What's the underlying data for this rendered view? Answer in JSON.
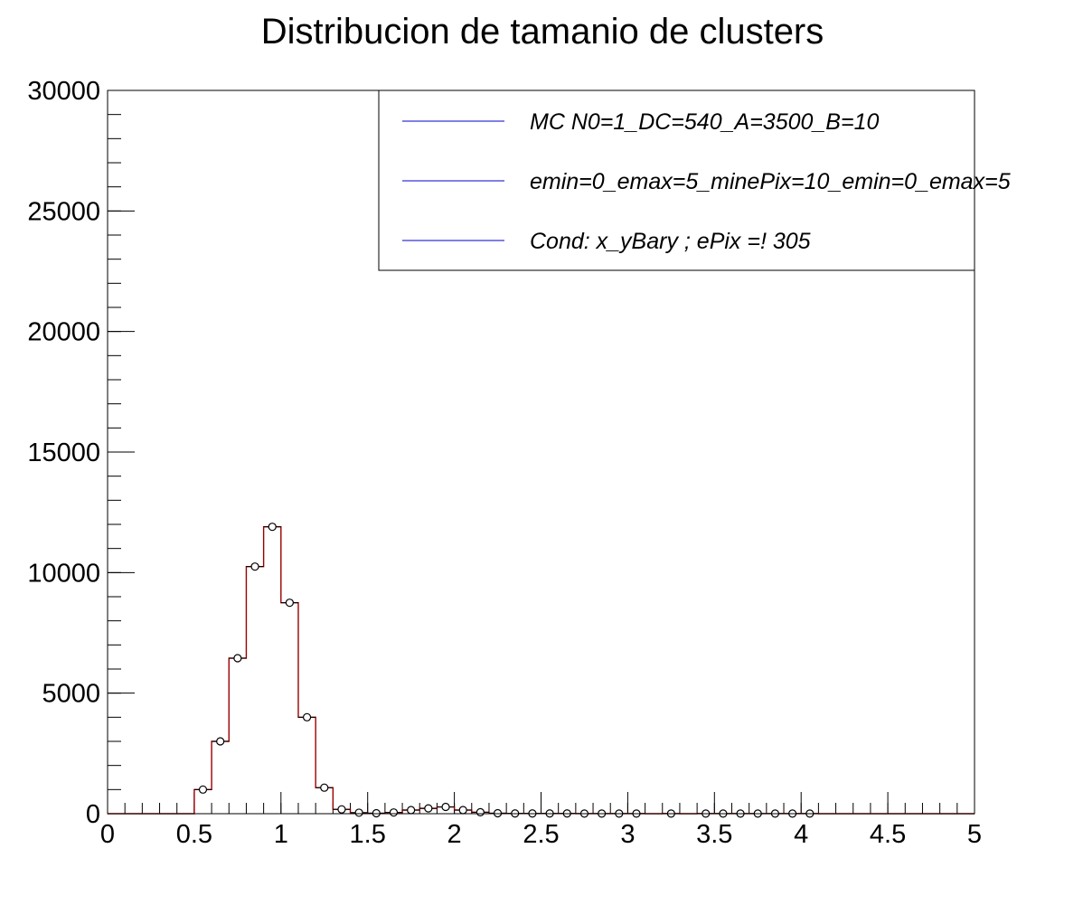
{
  "chart_data": {
    "type": "bar",
    "title": "Distribucion de tamanio de clusters",
    "xlabel": "",
    "ylabel": "",
    "xlim": [
      0,
      5
    ],
    "ylim": [
      0,
      30000
    ],
    "x_ticks": [
      "0",
      "0.5",
      "1",
      "1.5",
      "2",
      "2.5",
      "3",
      "3.5",
      "4",
      "4.5",
      "5"
    ],
    "y_ticks": [
      "0",
      "5000",
      "10000",
      "15000",
      "20000",
      "25000",
      "30000"
    ],
    "grid": false,
    "legend_position": "top-right",
    "legend": [
      "MC N0=1_DC=540_A=3500_B=10",
      "emin=0_emax=5_minePix=10_emin=0_emax=5",
      "Cond: x_yBary ; ePix =! 305"
    ],
    "colors": {
      "histogram": "#990000",
      "legend_line": "#0000cc",
      "marker": "#000000",
      "frame": "#000000"
    },
    "bin_width": 0.1,
    "series": [
      {
        "x": [
          0.55,
          0.65,
          0.75,
          0.85,
          0.95,
          1.05,
          1.15,
          1.25,
          1.35,
          1.45,
          1.55,
          1.65,
          1.75,
          1.85,
          1.95,
          2.05,
          2.15,
          2.25,
          2.35,
          2.45,
          2.55,
          2.65,
          2.75,
          2.85,
          2.95,
          3.05,
          3.25,
          3.45,
          3.55,
          3.65,
          3.75,
          3.85,
          3.95,
          4.05
        ],
        "values": [
          1000,
          3000,
          6450,
          10250,
          11900,
          8750,
          4000,
          1080,
          180,
          40,
          20,
          50,
          150,
          220,
          280,
          150,
          60,
          20,
          10,
          10,
          10,
          10,
          5,
          5,
          5,
          5,
          5,
          5,
          5,
          5,
          5,
          5,
          5,
          5
        ]
      }
    ]
  }
}
